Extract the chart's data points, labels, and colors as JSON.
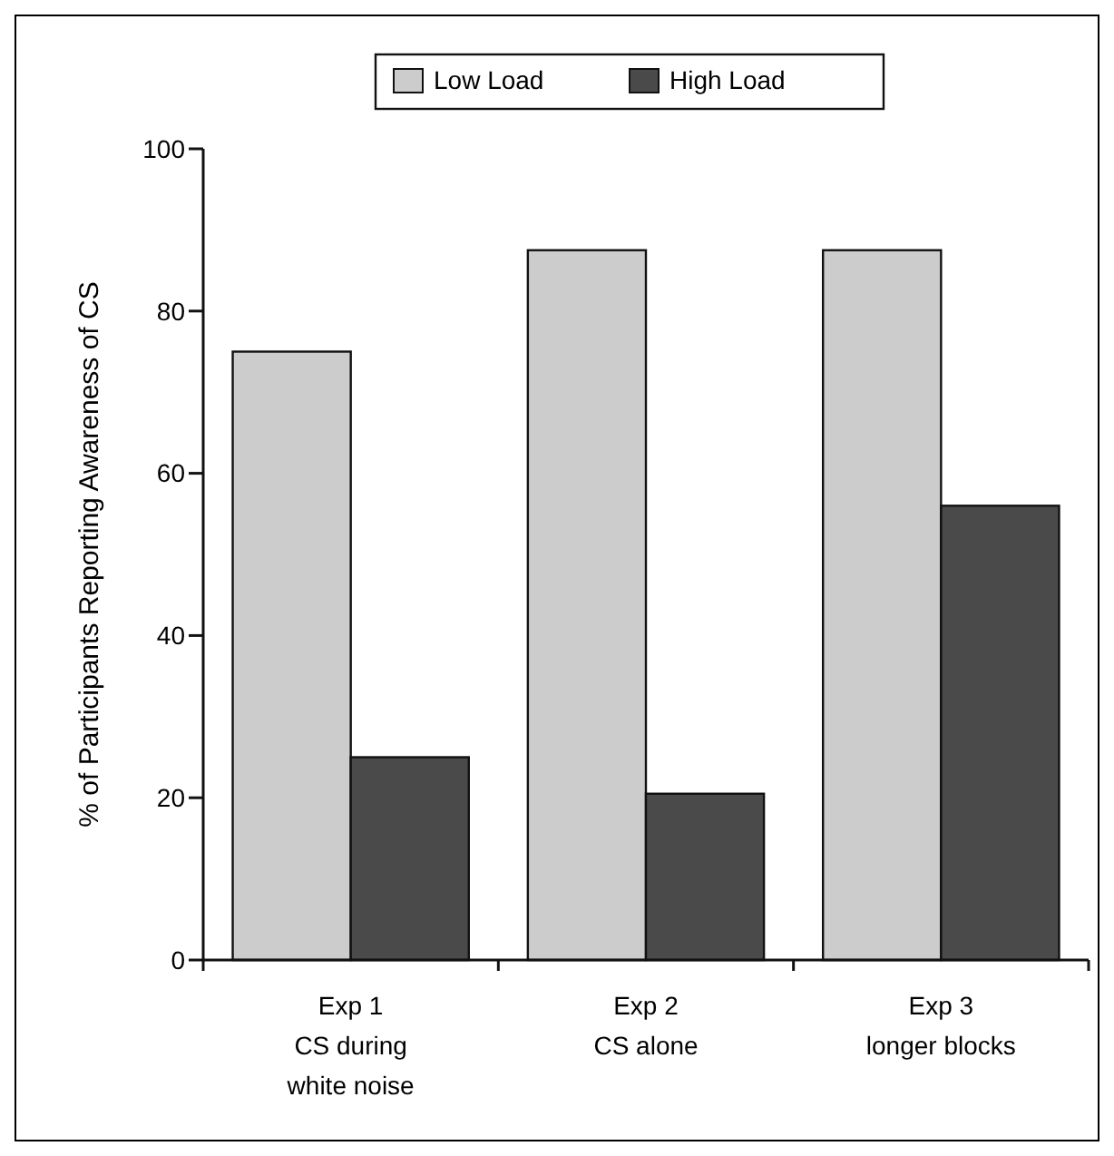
{
  "chart_data": {
    "type": "bar",
    "ylabel": "% of Participants Reporting Awareness of CS",
    "categories": [
      "Exp 1\nCS during\nwhite noise",
      "Exp 2\nCS alone",
      "Exp 3\nlonger blocks"
    ],
    "series": [
      {
        "name": "Low Load",
        "color": "#cccccc",
        "values": [
          75,
          87.5,
          87.5
        ]
      },
      {
        "name": "High Load",
        "color": "#4a4a4a",
        "values": [
          25,
          20.5,
          56
        ]
      }
    ],
    "ylim": [
      0,
      100
    ],
    "yticks": [
      0,
      20,
      40,
      60,
      80,
      100
    ],
    "grid": false,
    "legend": "top"
  }
}
